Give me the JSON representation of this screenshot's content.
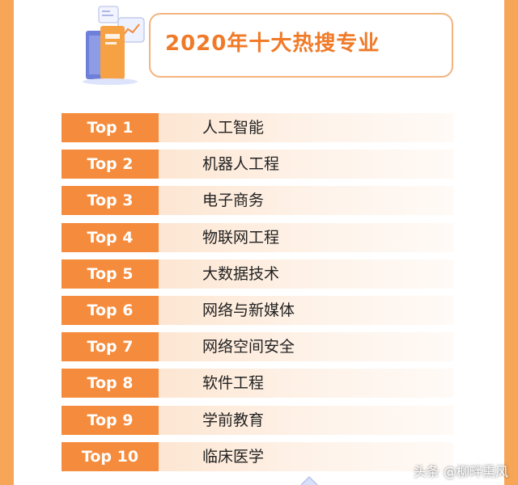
{
  "title": "2020年十大热搜专业",
  "ranking": [
    {
      "rank": "Top 1",
      "major": "人工智能"
    },
    {
      "rank": "Top 2",
      "major": "机器人工程"
    },
    {
      "rank": "Top 3",
      "major": "电子商务"
    },
    {
      "rank": "Top 4",
      "major": "物联网工程"
    },
    {
      "rank": "Top 5",
      "major": "大数据技术"
    },
    {
      "rank": "Top 6",
      "major": "网络与新媒体"
    },
    {
      "rank": "Top 7",
      "major": "网络空间安全"
    },
    {
      "rank": "Top 8",
      "major": "软件工程"
    },
    {
      "rank": "Top 9",
      "major": "学前教育"
    },
    {
      "rank": "Top 10",
      "major": "临床医学"
    }
  ],
  "watermark": "头条 @柳畔熏风",
  "colors": {
    "accent": "#f58b3c",
    "title": "#f07a28",
    "background": "#f7a557",
    "row_fill": "#fde6d2"
  },
  "icons": [
    "books-icon",
    "chart-card-icon"
  ]
}
